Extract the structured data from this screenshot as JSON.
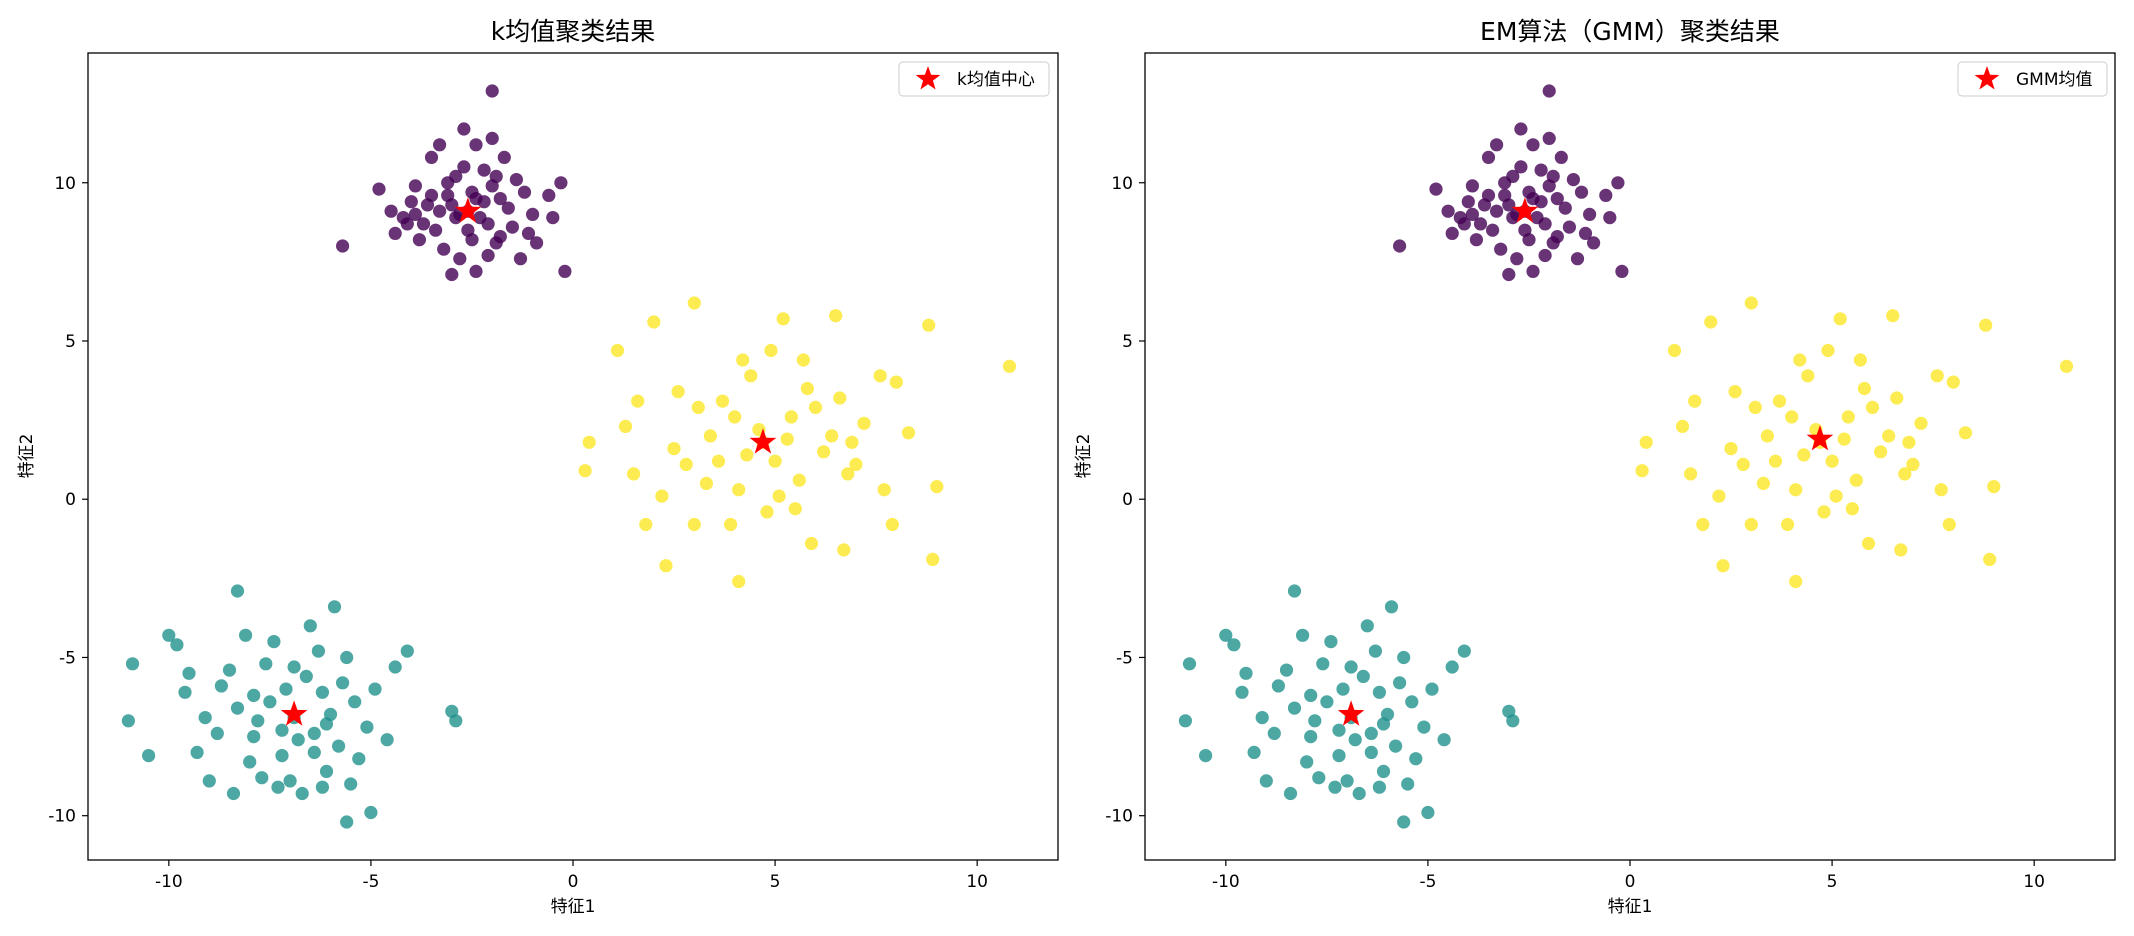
{
  "chart_data": [
    {
      "type": "scatter",
      "title": "k均值聚类结果",
      "xlabel": "特征1",
      "ylabel": "特征2",
      "xlim": [
        -12,
        12
      ],
      "ylim": [
        -11.4,
        14.1
      ],
      "xticks": [
        -10,
        -5,
        0,
        5,
        10
      ],
      "yticks": [
        -10,
        -5,
        0,
        5,
        10
      ],
      "grid": false,
      "legend": {
        "placement": "top-right",
        "entries": [
          "k均值中心"
        ]
      },
      "colors": {
        "cluster_purple": "#440154",
        "cluster_teal": "#21918c",
        "cluster_yellow": "#fde725",
        "center": "#ff0000"
      },
      "series": [
        {
          "cluster": 0,
          "color": "#440154",
          "points": [
            [
              -2.6,
              9.1
            ],
            [
              -3.1,
              9.6
            ],
            [
              -2.1,
              8.7
            ],
            [
              -3.4,
              8.5
            ],
            [
              -2.9,
              10.2
            ],
            [
              -1.8,
              9.5
            ],
            [
              -2.2,
              10.4
            ],
            [
              -3.6,
              9.3
            ],
            [
              -2.5,
              8.2
            ],
            [
              -1.5,
              8.6
            ],
            [
              -3.9,
              9.9
            ],
            [
              -2.0,
              9.9
            ],
            [
              -2.8,
              7.6
            ],
            [
              -3.2,
              7.9
            ],
            [
              -1.2,
              9.7
            ],
            [
              -4.2,
              8.9
            ],
            [
              -3.5,
              10.8
            ],
            [
              -2.4,
              11.2
            ],
            [
              -1.7,
              10.8
            ],
            [
              -0.9,
              8.1
            ],
            [
              -4.8,
              9.8
            ],
            [
              -0.3,
              10.0
            ],
            [
              -2.7,
              11.7
            ],
            [
              -1.3,
              7.6
            ],
            [
              -4.4,
              8.4
            ],
            [
              -5.7,
              8.0
            ],
            [
              -2.0,
              12.9
            ],
            [
              -3.0,
              7.1
            ],
            [
              -2.4,
              7.2
            ],
            [
              -0.2,
              7.2
            ],
            [
              -1.9,
              8.1
            ],
            [
              -3.7,
              8.7
            ],
            [
              -2.2,
              9.4
            ],
            [
              -2.9,
              8.9
            ],
            [
              -1.6,
              9.2
            ],
            [
              -3.3,
              9.1
            ],
            [
              -4.0,
              9.4
            ],
            [
              -1.0,
              9.0
            ],
            [
              -2.5,
              9.7
            ],
            [
              -3.0,
              9.3
            ],
            [
              -2.3,
              8.9
            ],
            [
              -1.8,
              8.3
            ],
            [
              -3.5,
              9.6
            ],
            [
              -2.7,
              10.5
            ],
            [
              -1.4,
              10.1
            ],
            [
              -3.8,
              8.2
            ],
            [
              -2.1,
              7.7
            ],
            [
              -4.5,
              9.1
            ],
            [
              -0.6,
              9.6
            ],
            [
              -0.5,
              8.9
            ],
            [
              -2.6,
              8.5
            ],
            [
              -3.1,
              10.0
            ],
            [
              -1.9,
              10.2
            ],
            [
              -2.4,
              9.5
            ],
            [
              -3.9,
              9.0
            ],
            [
              -2.8,
              9.0
            ],
            [
              -1.1,
              8.4
            ],
            [
              -4.1,
              8.7
            ],
            [
              -2.0,
              11.4
            ],
            [
              -3.3,
              11.2
            ]
          ]
        },
        {
          "cluster": 1,
          "color": "#21918c",
          "points": [
            [
              -6.9,
              -6.9
            ],
            [
              -7.5,
              -6.4
            ],
            [
              -6.4,
              -7.4
            ],
            [
              -7.9,
              -7.5
            ],
            [
              -6.2,
              -6.1
            ],
            [
              -5.8,
              -7.8
            ],
            [
              -8.3,
              -6.6
            ],
            [
              -7.2,
              -8.1
            ],
            [
              -6.6,
              -5.6
            ],
            [
              -5.4,
              -6.4
            ],
            [
              -8.7,
              -5.9
            ],
            [
              -7.6,
              -5.2
            ],
            [
              -6.1,
              -8.6
            ],
            [
              -5.1,
              -7.2
            ],
            [
              -9.1,
              -6.9
            ],
            [
              -7.0,
              -8.9
            ],
            [
              -6.3,
              -4.8
            ],
            [
              -8.1,
              -4.3
            ],
            [
              -5.6,
              -5.0
            ],
            [
              -9.5,
              -5.5
            ],
            [
              -4.4,
              -5.3
            ],
            [
              -4.1,
              -4.8
            ],
            [
              -3.0,
              -6.7
            ],
            [
              -2.9,
              -7.0
            ],
            [
              -10.9,
              -5.2
            ],
            [
              -11.0,
              -7.0
            ],
            [
              -10.5,
              -8.1
            ],
            [
              -9.8,
              -4.6
            ],
            [
              -10.0,
              -4.3
            ],
            [
              -8.3,
              -2.9
            ],
            [
              -5.9,
              -3.4
            ],
            [
              -5.6,
              -10.2
            ],
            [
              -5.0,
              -9.9
            ],
            [
              -6.7,
              -9.3
            ],
            [
              -7.3,
              -9.1
            ],
            [
              -9.3,
              -8.0
            ],
            [
              -8.4,
              -9.3
            ],
            [
              -6.2,
              -9.1
            ],
            [
              -4.6,
              -7.6
            ],
            [
              -7.8,
              -7.0
            ],
            [
              -6.8,
              -7.6
            ],
            [
              -7.1,
              -6.0
            ],
            [
              -6.0,
              -6.8
            ],
            [
              -8.0,
              -8.3
            ],
            [
              -5.3,
              -8.2
            ],
            [
              -7.4,
              -4.5
            ],
            [
              -6.5,
              -4.0
            ],
            [
              -8.8,
              -7.4
            ],
            [
              -9.6,
              -6.1
            ],
            [
              -5.7,
              -5.8
            ],
            [
              -6.4,
              -8.0
            ],
            [
              -7.7,
              -8.8
            ],
            [
              -8.5,
              -5.4
            ],
            [
              -4.9,
              -6.0
            ],
            [
              -6.9,
              -5.3
            ],
            [
              -7.9,
              -6.2
            ],
            [
              -6.1,
              -7.1
            ],
            [
              -5.5,
              -9.0
            ],
            [
              -9.0,
              -8.9
            ],
            [
              -7.2,
              -7.3
            ]
          ]
        },
        {
          "cluster": 2,
          "color": "#fde725",
          "points": [
            [
              4.7,
              1.8
            ],
            [
              3.6,
              1.2
            ],
            [
              5.4,
              2.6
            ],
            [
              4.1,
              0.3
            ],
            [
              6.2,
              1.5
            ],
            [
              3.1,
              2.9
            ],
            [
              5.8,
              3.5
            ],
            [
              4.4,
              3.9
            ],
            [
              2.5,
              1.6
            ],
            [
              6.8,
              0.8
            ],
            [
              3.9,
              -0.8
            ],
            [
              5.1,
              0.1
            ],
            [
              7.2,
              2.4
            ],
            [
              2.2,
              0.1
            ],
            [
              4.9,
              4.7
            ],
            [
              6.6,
              3.2
            ],
            [
              1.3,
              2.3
            ],
            [
              1.1,
              4.7
            ],
            [
              2.0,
              5.6
            ],
            [
              3.0,
              6.2
            ],
            [
              5.2,
              5.7
            ],
            [
              6.5,
              5.8
            ],
            [
              8.8,
              5.5
            ],
            [
              10.8,
              4.2
            ],
            [
              0.4,
              1.8
            ],
            [
              0.3,
              0.9
            ],
            [
              1.5,
              0.8
            ],
            [
              1.8,
              -0.8
            ],
            [
              2.3,
              -2.1
            ],
            [
              4.1,
              -2.6
            ],
            [
              5.9,
              -1.4
            ],
            [
              6.7,
              -1.6
            ],
            [
              7.9,
              -0.8
            ],
            [
              8.9,
              -1.9
            ],
            [
              9.0,
              0.4
            ],
            [
              8.0,
              3.7
            ],
            [
              7.6,
              3.9
            ],
            [
              4.6,
              2.2
            ],
            [
              5.0,
              1.2
            ],
            [
              3.4,
              2.0
            ],
            [
              4.3,
              1.4
            ],
            [
              5.6,
              0.6
            ],
            [
              6.0,
              2.9
            ],
            [
              3.7,
              3.1
            ],
            [
              2.8,
              1.1
            ],
            [
              4.0,
              2.6
            ],
            [
              5.3,
              1.9
            ],
            [
              6.4,
              2.0
            ],
            [
              3.3,
              0.5
            ],
            [
              4.8,
              -0.4
            ],
            [
              7.0,
              1.1
            ],
            [
              2.6,
              3.4
            ],
            [
              5.7,
              4.4
            ],
            [
              4.2,
              4.4
            ],
            [
              3.0,
              -0.8
            ],
            [
              6.9,
              1.8
            ],
            [
              7.7,
              0.3
            ],
            [
              8.3,
              2.1
            ],
            [
              1.6,
              3.1
            ],
            [
              5.5,
              -0.3
            ]
          ]
        }
      ],
      "centers": [
        [
          -2.6,
          9.1
        ],
        [
          -6.9,
          -6.8
        ],
        [
          4.7,
          1.8
        ]
      ]
    },
    {
      "type": "scatter",
      "title": "EM算法（GMM）聚类结果",
      "xlabel": "特征1",
      "ylabel": "特征2",
      "xlim": [
        -12,
        12
      ],
      "ylim": [
        -11.4,
        14.1
      ],
      "xticks": [
        -10,
        -5,
        0,
        5,
        10
      ],
      "yticks": [
        -10,
        -5,
        0,
        5,
        10
      ],
      "grid": false,
      "legend": {
        "placement": "top-right",
        "entries": [
          "GMM均值"
        ]
      },
      "series_same_as_first": true,
      "centers": [
        [
          -2.6,
          9.1
        ],
        [
          -6.9,
          -6.8
        ],
        [
          4.7,
          1.9
        ]
      ]
    }
  ]
}
